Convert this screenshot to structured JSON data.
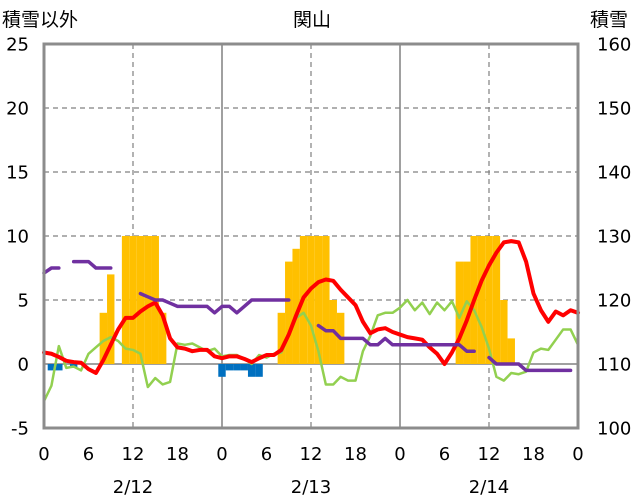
{
  "chart_data": {
    "type": "line",
    "title": "関山",
    "ylabel": "積雪以外",
    "y2label": "積雪",
    "xlabel": "",
    "ylim": [
      -5,
      25
    ],
    "y2lim": [
      100,
      160
    ],
    "yticks": [
      25,
      20,
      15,
      10,
      5,
      0,
      -5
    ],
    "y2ticks": [
      160,
      150,
      140,
      130,
      120,
      110,
      100
    ],
    "xlim": [
      0,
      72
    ],
    "xticks": [
      0,
      6,
      12,
      18,
      24,
      30,
      36,
      42,
      48,
      54,
      60,
      66,
      72
    ],
    "xtick_labels": [
      "0",
      "6",
      "12",
      "18",
      "0",
      "6",
      "12",
      "18",
      "0",
      "6",
      "12",
      "18",
      "0"
    ],
    "date_labels": [
      {
        "label": "2/12",
        "at": 12
      },
      {
        "label": "2/13",
        "at": 36
      },
      {
        "label": "2/14",
        "at": 60
      }
    ],
    "grid": true,
    "x": [
      0,
      1,
      2,
      3,
      4,
      5,
      6,
      7,
      8,
      9,
      10,
      11,
      12,
      13,
      14,
      15,
      16,
      17,
      18,
      19,
      20,
      21,
      22,
      23,
      24,
      25,
      26,
      27,
      28,
      29,
      30,
      31,
      32,
      33,
      34,
      35,
      36,
      37,
      38,
      39,
      40,
      41,
      42,
      43,
      44,
      45,
      46,
      47,
      48,
      49,
      50,
      51,
      52,
      53,
      54,
      55,
      56,
      57,
      58,
      59,
      60,
      61,
      62,
      63,
      64,
      65,
      66,
      67,
      68,
      69,
      70,
      71,
      72
    ],
    "series": [
      {
        "kind": "bar",
        "axis": "left",
        "color": "#FFC000",
        "values": [
          0,
          0,
          0,
          0,
          0,
          0,
          0,
          0,
          4,
          7,
          0,
          10,
          10,
          10,
          10,
          10,
          4,
          0,
          0,
          0,
          0,
          0,
          0,
          0,
          0,
          0,
          0,
          0,
          0,
          0,
          0,
          0,
          4,
          8,
          9,
          10,
          10,
          10,
          10,
          5,
          4,
          0,
          0,
          0,
          0,
          0,
          0,
          0,
          0,
          0,
          0,
          0,
          0,
          0,
          0,
          0,
          8,
          8,
          10,
          10,
          10,
          10,
          5,
          2,
          0,
          0,
          0,
          0,
          0,
          0,
          0,
          0,
          0
        ]
      },
      {
        "kind": "bar",
        "axis": "left",
        "color": "#0070C0",
        "values": [
          0,
          -0.5,
          -0.5,
          0,
          -0.3,
          0,
          0,
          0,
          0,
          0,
          0,
          0,
          0,
          0,
          0,
          0,
          0,
          0,
          0,
          0,
          0,
          0,
          0,
          0,
          -1,
          -0.5,
          -0.5,
          -0.5,
          -1,
          -1,
          0,
          0,
          0,
          0,
          0,
          0,
          0,
          0,
          0,
          0,
          0,
          0,
          0,
          0,
          0,
          0,
          0,
          0,
          0,
          0,
          0,
          0,
          0,
          0,
          0,
          0,
          0,
          0,
          0,
          0,
          0,
          0,
          0,
          0,
          0,
          0,
          0,
          0,
          0,
          0,
          0,
          0,
          0
        ]
      },
      {
        "kind": "line",
        "axis": "left",
        "color": "#92D050",
        "values": [
          -2.9,
          -1.7,
          1.4,
          -0.3,
          -0.2,
          -0.5,
          0.8,
          1.3,
          1.8,
          2.1,
          1.8,
          1.2,
          1.1,
          0.8,
          -1.8,
          -1.1,
          -1.6,
          -1.4,
          1.6,
          1.5,
          1.6,
          1.3,
          1.0,
          1.2,
          0.6,
          0.7,
          0.7,
          0.4,
          0.0,
          0.7,
          0.5,
          0.8,
          0.9,
          2.2,
          3.6,
          4.0,
          3.0,
          1.0,
          -1.6,
          -1.6,
          -1.0,
          -1.3,
          -1.3,
          1.0,
          2.2,
          3.8,
          4.0,
          4.0,
          4.4,
          5.0,
          4.2,
          4.8,
          3.9,
          4.8,
          4.2,
          4.9,
          3.6,
          4.9,
          4.2,
          2.9,
          1.2,
          -1.0,
          -1.3,
          -0.7,
          -0.8,
          -0.6,
          0.9,
          1.2,
          1.1,
          1.9,
          2.7,
          2.7,
          1.5
        ]
      },
      {
        "kind": "line",
        "axis": "left",
        "color": "#FF0000",
        "values": [
          0.9,
          0.8,
          0.55,
          0.25,
          0.15,
          0.1,
          -0.4,
          -0.7,
          0.3,
          1.5,
          2.7,
          3.6,
          3.6,
          4.1,
          4.5,
          4.8,
          3.8,
          2.0,
          1.3,
          1.2,
          1.0,
          1.1,
          1.1,
          0.6,
          0.45,
          0.6,
          0.6,
          0.4,
          0.15,
          0.45,
          0.7,
          0.7,
          1.1,
          2.3,
          3.8,
          5.2,
          5.9,
          6.4,
          6.6,
          6.5,
          5.8,
          5.2,
          4.6,
          3.3,
          2.4,
          2.7,
          2.8,
          2.5,
          2.3,
          2.1,
          2.0,
          1.9,
          1.3,
          0.8,
          0.0,
          0.9,
          2.0,
          3.4,
          5.0,
          6.5,
          7.7,
          8.7,
          9.5,
          9.6,
          9.5,
          8.0,
          5.5,
          4.2,
          3.3,
          4.1,
          3.8,
          4.2,
          4.0
        ]
      },
      {
        "kind": "line",
        "axis": "right",
        "color": "#7030A0",
        "values": [
          124.2,
          125,
          125,
          null,
          126,
          126,
          126,
          125,
          125,
          125,
          null,
          null,
          null,
          121,
          120.5,
          120,
          120,
          119.5,
          119,
          119,
          119,
          119,
          119,
          118,
          119,
          119,
          118,
          119,
          120,
          120,
          120,
          120,
          120,
          120,
          null,
          null,
          null,
          116,
          115.2,
          115.2,
          114,
          114,
          114,
          114,
          113,
          113,
          114,
          113,
          113,
          113,
          113,
          113,
          113,
          113,
          113,
          113,
          113,
          112,
          112,
          null,
          111,
          110,
          110,
          110,
          110,
          109,
          109,
          109,
          109,
          109,
          109,
          109,
          null
        ]
      }
    ]
  }
}
